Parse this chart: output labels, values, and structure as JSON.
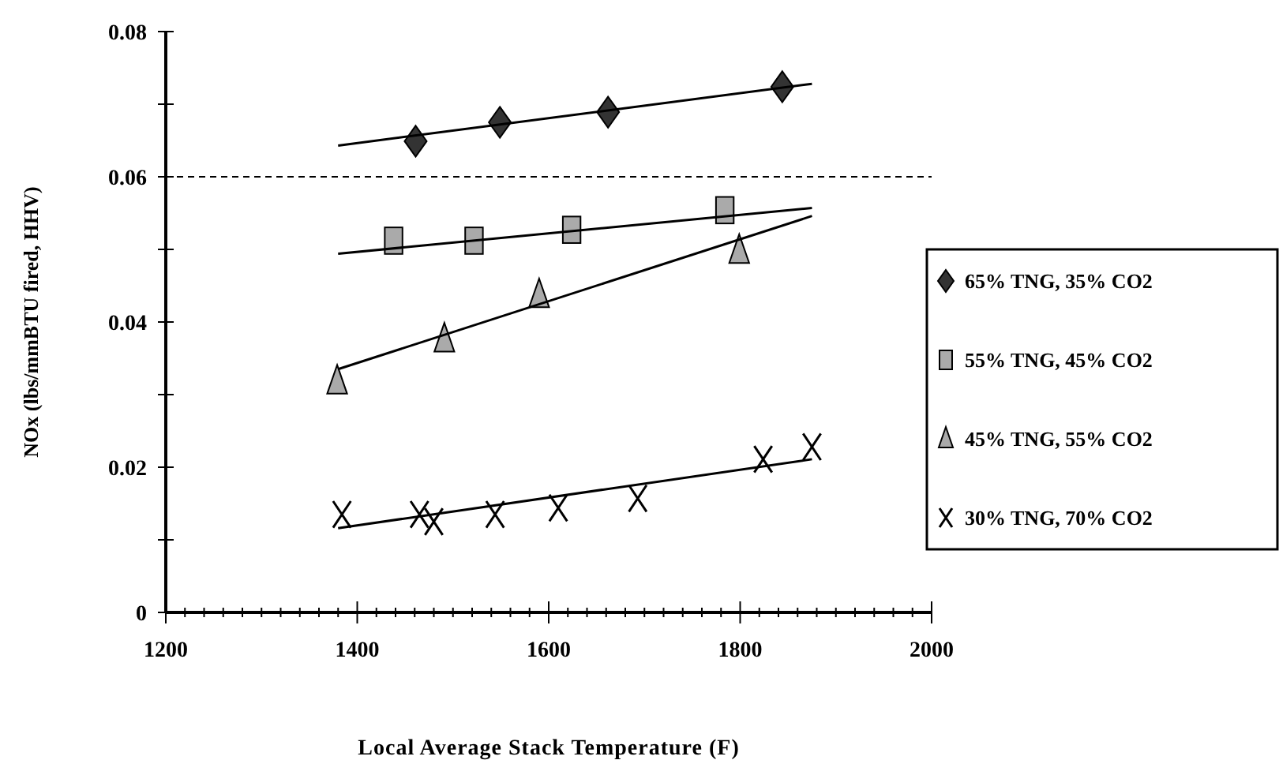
{
  "chart_data": {
    "type": "scatter",
    "xlabel": "Local Average Stack Temperature (F)",
    "ylabel": "NOx (lbs/mmBTU fired, HHV)",
    "xlim": [
      1200,
      2000
    ],
    "ylim": [
      0,
      0.08
    ],
    "xticks": [
      1200,
      {
        "value": 1220,
        "label": null
      },
      {
        "value": 1240,
        "label": null
      },
      {
        "value": 1260,
        "label": null
      },
      {
        "value": 1280,
        "label": null
      },
      {
        "value": 1300,
        "label": null
      },
      {
        "value": 1320,
        "label": null
      },
      {
        "value": 1340,
        "label": null
      },
      {
        "value": 1360,
        "label": null
      },
      {
        "value": 1380,
        "label": null
      },
      1400,
      {
        "value": 1420,
        "label": null
      },
      {
        "value": 1440,
        "label": null
      },
      {
        "value": 1460,
        "label": null
      },
      {
        "value": 1480,
        "label": null
      },
      {
        "value": 1500,
        "label": null
      },
      {
        "value": 1520,
        "label": null
      },
      {
        "value": 1540,
        "label": null
      },
      {
        "value": 1560,
        "label": null
      },
      {
        "value": 1580,
        "label": null
      },
      1600,
      {
        "value": 1620,
        "label": null
      },
      {
        "value": 1640,
        "label": null
      },
      {
        "value": 1660,
        "label": null
      },
      {
        "value": 1680,
        "label": null
      },
      {
        "value": 1700,
        "label": null
      },
      {
        "value": 1720,
        "label": null
      },
      {
        "value": 1740,
        "label": null
      },
      {
        "value": 1760,
        "label": null
      },
      {
        "value": 1780,
        "label": null
      },
      1800,
      {
        "value": 1820,
        "label": null
      },
      {
        "value": 1840,
        "label": null
      },
      {
        "value": 1860,
        "label": null
      },
      {
        "value": 1880,
        "label": null
      },
      {
        "value": 1900,
        "label": null
      },
      {
        "value": 1920,
        "label": null
      },
      {
        "value": 1940,
        "label": null
      },
      {
        "value": 1960,
        "label": null
      },
      {
        "value": 1980,
        "label": null
      },
      2000
    ],
    "yticks": [
      {
        "value": 0,
        "label": "0"
      },
      {
        "value": 0.01,
        "label": null
      },
      {
        "value": 0.02,
        "label": "0.02"
      },
      {
        "value": 0.03,
        "label": null
      },
      {
        "value": 0.04,
        "label": "0.04"
      },
      {
        "value": 0.05,
        "label": null
      },
      {
        "value": 0.06,
        "label": "0.06"
      },
      {
        "value": 0.07,
        "label": null
      },
      {
        "value": 0.08,
        "label": "0.08"
      }
    ],
    "grid": false,
    "legend": "right",
    "ref_lines": [
      {
        "axis": "y",
        "value": 0.06,
        "line_style": "dashed",
        "color": "#000000"
      }
    ],
    "series": [
      {
        "name": "65% TNG, 35% CO2",
        "marker": "diamond",
        "color": "#333333",
        "x": [
          1461,
          1549,
          1662,
          1844
        ],
        "values": [
          0.0649,
          0.0675,
          0.0689,
          0.0724
        ]
      },
      {
        "name": "55% TNG, 45% CO2",
        "marker": "square",
        "color": "#aaaaaa",
        "x": [
          1438,
          1522,
          1624,
          1784
        ],
        "values": [
          0.0512,
          0.0512,
          0.0527,
          0.0554
        ]
      },
      {
        "name": "45% TNG, 55% CO2",
        "marker": "triangle",
        "color": "#aaaaaa",
        "x": [
          1379,
          1491,
          1590,
          1799
        ],
        "values": [
          0.0318,
          0.0376,
          0.0437,
          0.0498
        ]
      },
      {
        "name": "30% TNG, 70% CO2",
        "marker": "cross",
        "color": "#000000",
        "x": [
          1384,
          1465,
          1480,
          1544,
          1610,
          1693,
          1824,
          1875
        ],
        "values": [
          0.0135,
          0.0135,
          0.0125,
          0.0135,
          0.0144,
          0.0157,
          0.0211,
          0.0228
        ]
      },
      {
        "type": "line",
        "marker": "none",
        "line_style": "solid",
        "color": "#000000",
        "x": [
          1380,
          1875
        ],
        "values": [
          0.0643,
          0.0728
        ]
      },
      {
        "type": "line",
        "marker": "none",
        "line_style": "solid",
        "color": "#000000",
        "x": [
          1380,
          1875
        ],
        "values": [
          0.0494,
          0.0557
        ]
      },
      {
        "type": "line",
        "marker": "none",
        "line_style": "solid",
        "color": "#000000",
        "x": [
          1380,
          1875
        ],
        "values": [
          0.0335,
          0.0546
        ]
      },
      {
        "type": "line",
        "marker": "none",
        "line_style": "solid",
        "color": "#000000",
        "x": [
          1380,
          1875
        ],
        "values": [
          0.0116,
          0.0211
        ]
      }
    ]
  }
}
